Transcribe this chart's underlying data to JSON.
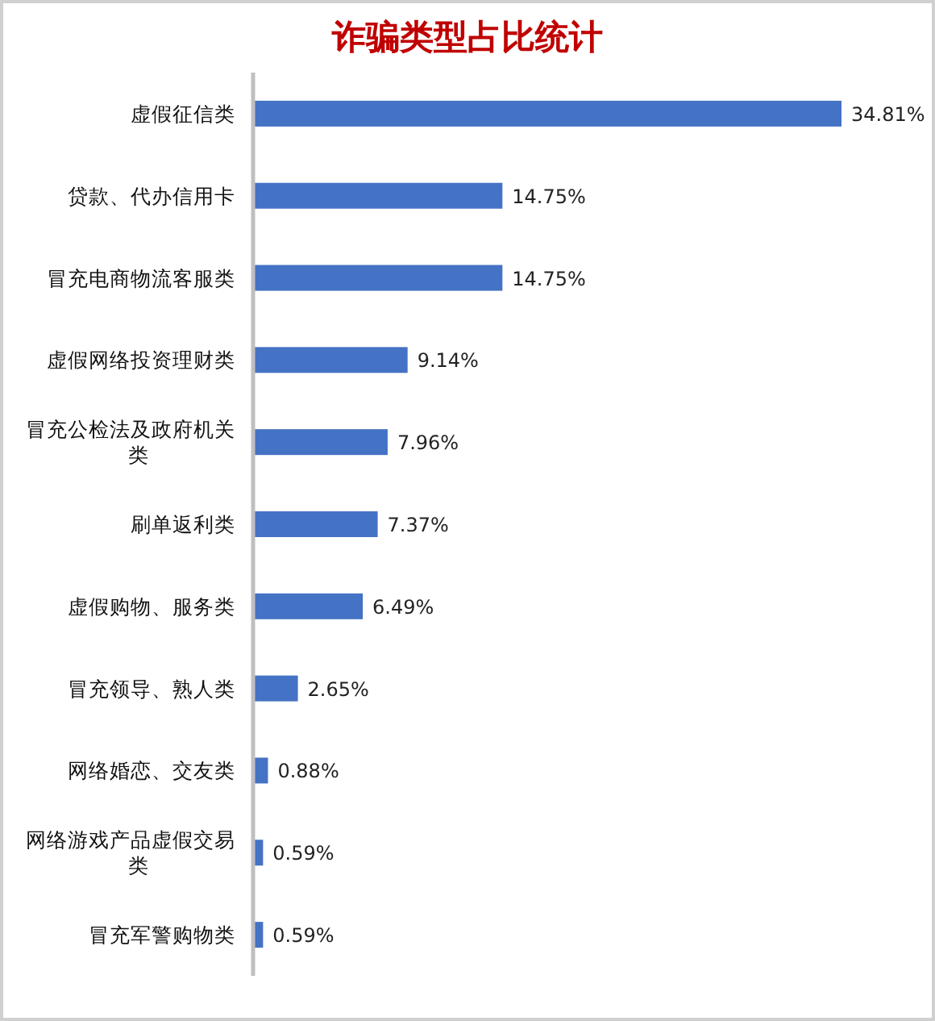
{
  "chart_data": {
    "type": "bar",
    "orientation": "horizontal",
    "title": "诈骗类型占比统计",
    "categories": [
      "虚假征信类",
      "贷款、代办信用卡",
      "冒充电商物流客服类",
      "虚假网络投资理财类",
      "冒充公检法及政府机关类",
      "刷单返利类",
      "虚假购物、服务类",
      "冒充领导、熟人类",
      "网络婚恋、交友类",
      "网络游戏产品虚假交易类",
      "冒充军警购物类"
    ],
    "values": [
      34.81,
      14.75,
      14.75,
      9.14,
      7.96,
      7.37,
      6.49,
      2.65,
      0.88,
      0.59,
      0.59
    ],
    "value_labels": [
      "34.81%",
      "14.75%",
      "14.75%",
      "9.14%",
      "7.96%",
      "7.37%",
      "6.49%",
      "2.65%",
      "0.88%",
      "0.59%",
      "0.59%"
    ],
    "color": "#4472c4"
  }
}
